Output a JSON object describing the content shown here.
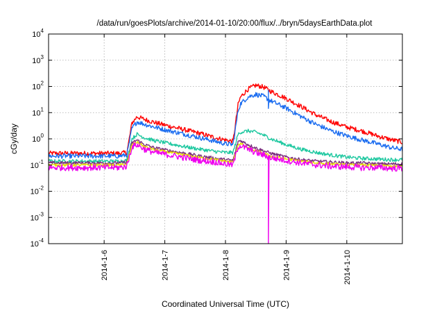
{
  "chart_data": {
    "type": "line",
    "title": "/data/run/goesPlots/archive/2014-01-10/20:00/flux/../bryn/5daysEarthData.plot",
    "xlabel": "Coordinated Universal Time (UTC)",
    "ylabel": "cGy/day",
    "y_scale": "log",
    "ylim": [
      0.0001,
      10000
    ],
    "xlim": [
      "2014-01-05 02:00",
      "2014-01-10 22:00"
    ],
    "x_ticks": [
      "2014-1-6",
      "2014-1-7",
      "2014-1-8",
      "2014-1-9",
      "2014-1-10"
    ],
    "y_ticks": [
      {
        "base": "10",
        "exp": "-4",
        "value": 0.0001
      },
      {
        "base": "10",
        "exp": "-3",
        "value": 0.001
      },
      {
        "base": "10",
        "exp": "-2",
        "value": 0.01
      },
      {
        "base": "10",
        "exp": "-1",
        "value": 0.1
      },
      {
        "base": "10",
        "exp": "0",
        "value": 1
      },
      {
        "base": "10",
        "exp": "1",
        "value": 10
      },
      {
        "base": "10",
        "exp": "2",
        "value": 100
      },
      {
        "base": "10",
        "exp": "3",
        "value": 1000
      },
      {
        "base": "10",
        "exp": "4",
        "value": 10000
      }
    ],
    "grid": true,
    "series": [
      {
        "color": "#ff0000",
        "noise": 0.09,
        "points": [
          [
            "2014-01-05 02:00",
            0.28
          ],
          [
            "2014-01-06 06:00",
            0.28
          ],
          [
            "2014-01-06 09:00",
            0.3
          ],
          [
            "2014-01-06 11:00",
            4.0
          ],
          [
            "2014-01-06 13:00",
            7.0
          ],
          [
            "2014-01-06 16:00",
            5.5
          ],
          [
            "2014-01-06 20:00",
            4.2
          ],
          [
            "2014-01-07 02:00",
            3.0
          ],
          [
            "2014-01-07 08:00",
            2.2
          ],
          [
            "2014-01-07 14:00",
            1.6
          ],
          [
            "2014-01-07 20:00",
            1.1
          ],
          [
            "2014-01-08 00:00",
            0.9
          ],
          [
            "2014-01-08 03:00",
            0.8
          ],
          [
            "2014-01-08 05:00",
            20.0
          ],
          [
            "2014-01-08 06:00",
            40.0
          ],
          [
            "2014-01-08 09:00",
            80.0
          ],
          [
            "2014-01-08 12:00",
            110.0
          ],
          [
            "2014-01-08 15:00",
            95.0
          ],
          [
            "2014-01-08 18:00",
            65.0
          ],
          [
            "2014-01-09 00:00",
            35.0
          ],
          [
            "2014-01-09 06:00",
            17.0
          ],
          [
            "2014-01-09 12:00",
            8.0
          ],
          [
            "2014-01-09 18:00",
            4.5
          ],
          [
            "2014-01-10 00:00",
            2.8
          ],
          [
            "2014-01-10 06:00",
            2.0
          ],
          [
            "2014-01-10 12:00",
            1.3
          ],
          [
            "2014-01-10 18:00",
            0.9
          ],
          [
            "2014-01-10 22:00",
            0.75
          ]
        ]
      },
      {
        "color": "#1a6cf0",
        "noise": 0.09,
        "drop_at": "2014-01-08 17:00",
        "points": [
          [
            "2014-01-05 02:00",
            0.22
          ],
          [
            "2014-01-06 06:00",
            0.22
          ],
          [
            "2014-01-06 09:00",
            0.24
          ],
          [
            "2014-01-06 11:00",
            2.5
          ],
          [
            "2014-01-06 13:00",
            4.5
          ],
          [
            "2014-01-06 16:00",
            3.6
          ],
          [
            "2014-01-06 20:00",
            2.8
          ],
          [
            "2014-01-07 02:00",
            2.0
          ],
          [
            "2014-01-07 08:00",
            1.5
          ],
          [
            "2014-01-07 14:00",
            1.1
          ],
          [
            "2014-01-07 20:00",
            0.8
          ],
          [
            "2014-01-08 00:00",
            0.65
          ],
          [
            "2014-01-08 03:00",
            0.6
          ],
          [
            "2014-01-08 05:00",
            12.0
          ],
          [
            "2014-01-08 06:00",
            22.0
          ],
          [
            "2014-01-08 09:00",
            40.0
          ],
          [
            "2014-01-08 12:00",
            50.0
          ],
          [
            "2014-01-08 15:00",
            42.0
          ],
          [
            "2014-01-08 18:00",
            28.0
          ],
          [
            "2014-01-09 00:00",
            15.0
          ],
          [
            "2014-01-09 06:00",
            7.0
          ],
          [
            "2014-01-09 12:00",
            3.5
          ],
          [
            "2014-01-09 18:00",
            2.0
          ],
          [
            "2014-01-10 00:00",
            1.3
          ],
          [
            "2014-01-10 06:00",
            0.9
          ],
          [
            "2014-01-10 12:00",
            0.65
          ],
          [
            "2014-01-10 18:00",
            0.45
          ],
          [
            "2014-01-10 22:00",
            0.4
          ]
        ]
      },
      {
        "color": "#1ec8a0",
        "noise": 0.07,
        "points": [
          [
            "2014-01-05 02:00",
            0.14
          ],
          [
            "2014-01-06 06:00",
            0.14
          ],
          [
            "2014-01-06 09:00",
            0.15
          ],
          [
            "2014-01-06 11:00",
            1.0
          ],
          [
            "2014-01-06 13:00",
            1.5
          ],
          [
            "2014-01-06 16:00",
            1.1
          ],
          [
            "2014-01-06 20:00",
            0.85
          ],
          [
            "2014-01-07 02:00",
            0.65
          ],
          [
            "2014-01-07 08:00",
            0.5
          ],
          [
            "2014-01-07 14:00",
            0.4
          ],
          [
            "2014-01-07 20:00",
            0.33
          ],
          [
            "2014-01-08 00:00",
            0.3
          ],
          [
            "2014-01-08 03:00",
            0.3
          ],
          [
            "2014-01-08 05:00",
            1.5
          ],
          [
            "2014-01-08 06:00",
            1.8
          ],
          [
            "2014-01-08 09:00",
            2.0
          ],
          [
            "2014-01-08 12:00",
            1.8
          ],
          [
            "2014-01-08 15:00",
            1.4
          ],
          [
            "2014-01-08 18:00",
            1.0
          ],
          [
            "2014-01-09 00:00",
            0.6
          ],
          [
            "2014-01-09 06:00",
            0.4
          ],
          [
            "2014-01-09 12:00",
            0.3
          ],
          [
            "2014-01-09 18:00",
            0.24
          ],
          [
            "2014-01-10 00:00",
            0.2
          ],
          [
            "2014-01-10 06:00",
            0.18
          ],
          [
            "2014-01-10 12:00",
            0.17
          ],
          [
            "2014-01-10 18:00",
            0.16
          ],
          [
            "2014-01-10 22:00",
            0.16
          ]
        ]
      },
      {
        "color": "#7b2e7e",
        "noise": 0.06,
        "points": [
          [
            "2014-01-05 02:00",
            0.12
          ],
          [
            "2014-01-06 06:00",
            0.12
          ],
          [
            "2014-01-06 09:00",
            0.13
          ],
          [
            "2014-01-06 11:00",
            0.7
          ],
          [
            "2014-01-06 13:00",
            0.9
          ],
          [
            "2014-01-06 16:00",
            0.6
          ],
          [
            "2014-01-06 20:00",
            0.45
          ],
          [
            "2014-01-07 02:00",
            0.35
          ],
          [
            "2014-01-07 08:00",
            0.28
          ],
          [
            "2014-01-07 14:00",
            0.22
          ],
          [
            "2014-01-07 20:00",
            0.18
          ],
          [
            "2014-01-08 00:00",
            0.16
          ],
          [
            "2014-01-08 03:00",
            0.15
          ],
          [
            "2014-01-08 05:00",
            0.8
          ],
          [
            "2014-01-08 06:00",
            0.85
          ],
          [
            "2014-01-08 09:00",
            0.6
          ],
          [
            "2014-01-08 12:00",
            0.45
          ],
          [
            "2014-01-08 15:00",
            0.35
          ],
          [
            "2014-01-08 18:00",
            0.28
          ],
          [
            "2014-01-09 00:00",
            0.2
          ],
          [
            "2014-01-09 06:00",
            0.16
          ],
          [
            "2014-01-09 12:00",
            0.14
          ],
          [
            "2014-01-09 18:00",
            0.13
          ],
          [
            "2014-01-10 00:00",
            0.12
          ],
          [
            "2014-01-10 06:00",
            0.12
          ],
          [
            "2014-01-10 12:00",
            0.11
          ],
          [
            "2014-01-10 18:00",
            0.11
          ],
          [
            "2014-01-10 22:00",
            0.11
          ]
        ]
      },
      {
        "color": "#e8e000",
        "noise": 0.05,
        "points": [
          [
            "2014-01-05 02:00",
            0.1
          ],
          [
            "2014-01-06 06:00",
            0.1
          ],
          [
            "2014-01-06 09:00",
            0.11
          ],
          [
            "2014-01-06 11:00",
            0.6
          ],
          [
            "2014-01-06 13:00",
            0.75
          ],
          [
            "2014-01-06 16:00",
            0.5
          ],
          [
            "2014-01-06 20:00",
            0.38
          ],
          [
            "2014-01-07 02:00",
            0.3
          ],
          [
            "2014-01-07 08:00",
            0.24
          ],
          [
            "2014-01-07 14:00",
            0.19
          ],
          [
            "2014-01-07 20:00",
            0.16
          ],
          [
            "2014-01-08 00:00",
            0.14
          ],
          [
            "2014-01-08 03:00",
            0.13
          ],
          [
            "2014-01-08 05:00",
            0.6
          ],
          [
            "2014-01-08 06:00",
            0.65
          ],
          [
            "2014-01-08 09:00",
            0.45
          ],
          [
            "2014-01-08 12:00",
            0.35
          ],
          [
            "2014-01-08 15:00",
            0.28
          ],
          [
            "2014-01-08 18:00",
            0.22
          ],
          [
            "2014-01-09 00:00",
            0.17
          ],
          [
            "2014-01-09 06:00",
            0.14
          ],
          [
            "2014-01-09 12:00",
            0.12
          ],
          [
            "2014-01-09 18:00",
            0.11
          ],
          [
            "2014-01-10 00:00",
            0.1
          ],
          [
            "2014-01-10 06:00",
            0.1
          ],
          [
            "2014-01-10 12:00",
            0.095
          ],
          [
            "2014-01-10 18:00",
            0.09
          ],
          [
            "2014-01-10 22:00",
            0.09
          ]
        ]
      },
      {
        "color": "#ee00ee",
        "noise": 0.12,
        "drop_at": "2014-01-08 17:00",
        "points": [
          [
            "2014-01-05 02:00",
            0.08
          ],
          [
            "2014-01-06 06:00",
            0.08
          ],
          [
            "2014-01-06 09:00",
            0.09
          ],
          [
            "2014-01-06 11:00",
            0.5
          ],
          [
            "2014-01-06 13:00",
            0.6
          ],
          [
            "2014-01-06 16:00",
            0.4
          ],
          [
            "2014-01-06 20:00",
            0.3
          ],
          [
            "2014-01-07 02:00",
            0.24
          ],
          [
            "2014-01-07 08:00",
            0.19
          ],
          [
            "2014-01-07 14:00",
            0.15
          ],
          [
            "2014-01-07 20:00",
            0.13
          ],
          [
            "2014-01-08 00:00",
            0.11
          ],
          [
            "2014-01-08 03:00",
            0.1
          ],
          [
            "2014-01-08 05:00",
            0.5
          ],
          [
            "2014-01-08 06:00",
            0.55
          ],
          [
            "2014-01-08 09:00",
            0.4
          ],
          [
            "2014-01-08 12:00",
            0.3
          ],
          [
            "2014-01-08 15:00",
            0.24
          ],
          [
            "2014-01-08 18:00",
            0.19
          ],
          [
            "2014-01-09 00:00",
            0.15
          ],
          [
            "2014-01-09 06:00",
            0.12
          ],
          [
            "2014-01-09 12:00",
            0.1
          ],
          [
            "2014-01-09 18:00",
            0.09
          ],
          [
            "2014-01-10 00:00",
            0.085
          ],
          [
            "2014-01-10 06:00",
            0.08
          ],
          [
            "2014-01-10 12:00",
            0.08
          ],
          [
            "2014-01-10 18:00",
            0.075
          ],
          [
            "2014-01-10 22:00",
            0.075
          ]
        ]
      }
    ]
  }
}
